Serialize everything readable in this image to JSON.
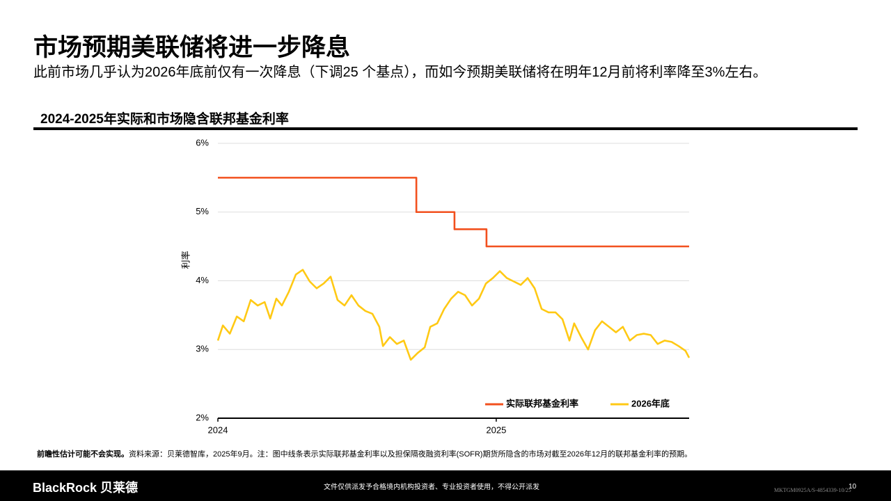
{
  "header": {
    "title": "市场预期美联储将进一步降息",
    "subtitle": "此前市场几乎认为2026年底前仅有一次降息（下调25 个基点），而如今预期美联储将在明年12月前将利率降至3%左右。"
  },
  "chart_data": {
    "type": "line",
    "title": "2024-2025年实际和市场隐含联邦基金利率",
    "y_label": "利率",
    "xlim": [
      2024,
      2025.693
    ],
    "xticks": [
      2024,
      2025
    ],
    "ylim": [
      2,
      6
    ],
    "yticks": [
      {
        "value": 2,
        "label": "2%"
      },
      {
        "value": 3,
        "label": "3%"
      },
      {
        "value": 4,
        "label": "4%"
      },
      {
        "value": 5,
        "label": "5%"
      },
      {
        "value": 6,
        "label": "6%"
      }
    ],
    "grid": true,
    "legend": "lower right",
    "series": [
      {
        "name": "实际联邦基金利率",
        "color": "#f2501e",
        "x": [
          2024,
          2024.713,
          2024.713,
          2024.85,
          2024.85,
          2024.965,
          2024.965,
          2025.693
        ],
        "values": [
          5.5,
          5.5,
          5.0,
          5.0,
          4.75,
          4.75,
          4.5,
          4.5
        ]
      },
      {
        "name": "2026年底",
        "color": "#ffc914",
        "x": [
          2024,
          2024.018,
          2024.043,
          2024.068,
          2024.093,
          2024.118,
          2024.143,
          2024.168,
          2024.188,
          2024.21,
          2024.23,
          2024.255,
          2024.28,
          2024.305,
          2024.33,
          2024.355,
          2024.38,
          2024.405,
          2024.43,
          2024.455,
          2024.48,
          2024.505,
          2024.53,
          2024.555,
          2024.58,
          2024.593,
          2024.618,
          2024.643,
          2024.668,
          2024.693,
          2024.718,
          2024.743,
          2024.763,
          2024.788,
          2024.813,
          2024.838,
          2024.863,
          2024.888,
          2024.913,
          2024.938,
          2024.963,
          2024.988,
          2025.013,
          2025.038,
          2025.063,
          2025.088,
          2025.113,
          2025.138,
          2025.163,
          2025.188,
          2025.213,
          2025.238,
          2025.263,
          2025.28,
          2025.305,
          2025.33,
          2025.355,
          2025.38,
          2025.405,
          2025.43,
          2025.455,
          2025.48,
          2025.505,
          2025.53,
          2025.555,
          2025.58,
          2025.605,
          2025.63,
          2025.655,
          2025.68,
          2025.693
        ],
        "values": [
          3.13,
          3.35,
          3.23,
          3.48,
          3.41,
          3.72,
          3.64,
          3.69,
          3.45,
          3.74,
          3.64,
          3.84,
          4.09,
          4.16,
          3.99,
          3.89,
          3.96,
          4.06,
          3.72,
          3.64,
          3.79,
          3.64,
          3.56,
          3.52,
          3.33,
          3.05,
          3.18,
          3.08,
          3.13,
          2.85,
          2.95,
          3.03,
          3.33,
          3.38,
          3.59,
          3.74,
          3.84,
          3.79,
          3.64,
          3.74,
          3.96,
          4.04,
          4.14,
          4.04,
          3.99,
          3.94,
          4.04,
          3.89,
          3.59,
          3.54,
          3.54,
          3.44,
          3.13,
          3.38,
          3.18,
          3.0,
          3.28,
          3.41,
          3.33,
          3.25,
          3.33,
          3.13,
          3.21,
          3.23,
          3.21,
          3.08,
          3.13,
          3.11,
          3.05,
          2.98,
          2.88
        ]
      }
    ]
  },
  "footnote": {
    "bold": "前瞻性估计可能不会实现。",
    "text": "资料来源：贝莱德智库，2025年9月。注：图中线条表示实际联邦基金利率以及担保隔夜融资利率(SOFR)期货所隐含的市场对截至2026年12月的联邦基金利率的预期。"
  },
  "footer": {
    "logo": "BlackRock 贝莱德",
    "notice": "文件仅供派发予合格境内机构投资者、专业投资者使用，不得公开派发",
    "code": "MKTGM0925A/S-4854339-10/25",
    "page": "10"
  }
}
